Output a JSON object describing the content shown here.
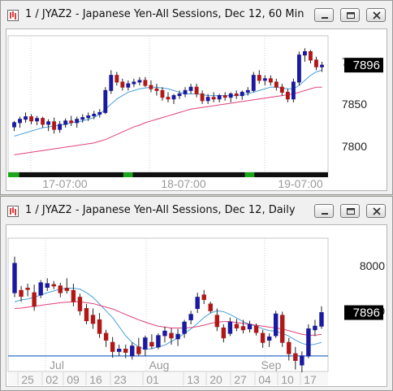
{
  "windows": [
    {
      "title": "1 / JYAZ2 - Japanese Yen-All Sessions, Dec 12, 60 Min",
      "price_labels": [
        "7900",
        "7850",
        "7800"
      ],
      "current_price": "7896",
      "x_labels": [
        "17-07:00",
        "18-07:00",
        "19-07:00"
      ]
    },
    {
      "title": "1 / JYAZ2 - Japanese Yen-All Sessions, Dec 12, Daily",
      "price_labels": [
        "8000",
        "7900"
      ],
      "current_price": "7896",
      "month_labels": [
        "Jul",
        "Aug",
        "Sep"
      ],
      "day_labels": [
        "25",
        "02",
        "09",
        "16",
        "23",
        "01",
        "13",
        "20",
        "27",
        "04",
        "10",
        "17"
      ]
    }
  ],
  "icons": {
    "window_icon": "chart-window-icon",
    "minimize": "minimize-icon",
    "restore": "restore-icon",
    "close": "close-icon"
  },
  "colors": {
    "candle": "#1a1aa0",
    "ma_fast": "#4aa0d8",
    "ma_slow": "#e0407a",
    "hline": "#2e6fc8",
    "session_on": "#1aa81a",
    "session_off": "#101010"
  },
  "chart_data": [
    {
      "type": "candlestick",
      "title": "1 / JYAZ2 - Japanese Yen-All Sessions, Dec 12, 60 Min",
      "ylim": [
        7775,
        7925
      ],
      "ytick_labels": [
        "7900",
        "7850",
        "7800"
      ],
      "xtick_labels": [
        "17-07:00",
        "18-07:00",
        "19-07:00"
      ],
      "last": 7896,
      "ohlc": [
        [
          7823,
          7830,
          7818,
          7828
        ],
        [
          7828,
          7835,
          7822,
          7832
        ],
        [
          7832,
          7840,
          7828,
          7835
        ],
        [
          7835,
          7838,
          7826,
          7830
        ],
        [
          7830,
          7836,
          7825,
          7833
        ],
        [
          7833,
          7835,
          7822,
          7826
        ],
        [
          7826,
          7832,
          7818,
          7829
        ],
        [
          7829,
          7834,
          7815,
          7820
        ],
        [
          7820,
          7830,
          7816,
          7826
        ],
        [
          7826,
          7833,
          7822,
          7830
        ],
        [
          7830,
          7836,
          7824,
          7828
        ],
        [
          7828,
          7835,
          7822,
          7832
        ],
        [
          7832,
          7838,
          7828,
          7834
        ],
        [
          7834,
          7840,
          7830,
          7836
        ],
        [
          7836,
          7842,
          7832,
          7838
        ],
        [
          7838,
          7844,
          7834,
          7840
        ],
        [
          7840,
          7870,
          7838,
          7866
        ],
        [
          7866,
          7890,
          7862,
          7884
        ],
        [
          7884,
          7888,
          7872,
          7876
        ],
        [
          7876,
          7880,
          7866,
          7870
        ],
        [
          7870,
          7878,
          7866,
          7874
        ],
        [
          7874,
          7880,
          7870,
          7876
        ],
        [
          7876,
          7882,
          7872,
          7878
        ],
        [
          7878,
          7882,
          7870,
          7872
        ],
        [
          7872,
          7878,
          7864,
          7868
        ],
        [
          7868,
          7874,
          7860,
          7866
        ],
        [
          7866,
          7870,
          7854,
          7858
        ],
        [
          7858,
          7864,
          7852,
          7856
        ],
        [
          7856,
          7862,
          7850,
          7860
        ],
        [
          7860,
          7866,
          7856,
          7862
        ],
        [
          7862,
          7870,
          7858,
          7866
        ],
        [
          7866,
          7874,
          7862,
          7870
        ],
        [
          7870,
          7874,
          7858,
          7862
        ],
        [
          7862,
          7866,
          7850,
          7854
        ],
        [
          7854,
          7862,
          7850,
          7858
        ],
        [
          7858,
          7864,
          7852,
          7856
        ],
        [
          7856,
          7862,
          7852,
          7860
        ],
        [
          7860,
          7864,
          7854,
          7858
        ],
        [
          7858,
          7864,
          7852,
          7862
        ],
        [
          7862,
          7866,
          7856,
          7860
        ],
        [
          7860,
          7866,
          7855,
          7864
        ],
        [
          7864,
          7870,
          7860,
          7866
        ],
        [
          7866,
          7888,
          7864,
          7884
        ],
        [
          7884,
          7890,
          7874,
          7878
        ],
        [
          7878,
          7884,
          7872,
          7880
        ],
        [
          7880,
          7884,
          7872,
          7876
        ],
        [
          7876,
          7880,
          7866,
          7870
        ],
        [
          7870,
          7874,
          7860,
          7864
        ],
        [
          7864,
          7868,
          7852,
          7856
        ],
        [
          7856,
          7880,
          7852,
          7876
        ],
        [
          7876,
          7912,
          7872,
          7908
        ],
        [
          7908,
          7916,
          7900,
          7912
        ],
        [
          7912,
          7914,
          7898,
          7902
        ],
        [
          7902,
          7906,
          7890,
          7894
        ],
        [
          7894,
          7900,
          7888,
          7896
        ]
      ],
      "series": [
        {
          "values": [
            7812,
            7814,
            7816,
            7818,
            7820,
            7822,
            7823,
            7824,
            7825,
            7826,
            7828,
            7829,
            7830,
            7832,
            7834,
            7838,
            7844,
            7850,
            7856,
            7860,
            7864,
            7866,
            7868,
            7869,
            7870,
            7870,
            7869,
            7868,
            7866,
            7864,
            7862,
            7862,
            7862,
            7861,
            7860,
            7860,
            7860,
            7860,
            7860,
            7860,
            7861,
            7862,
            7864,
            7866,
            7868,
            7870,
            7870,
            7869,
            7868,
            7868,
            7872,
            7878,
            7884,
            7888,
            7890
          ]
        },
        {
          "values": [
            7790,
            7791,
            7792,
            7793,
            7794,
            7795,
            7796,
            7797,
            7798,
            7799,
            7800,
            7801,
            7802,
            7803,
            7804,
            7806,
            7808,
            7811,
            7814,
            7817,
            7820,
            7823,
            7825,
            7828,
            7830,
            7832,
            7834,
            7836,
            7838,
            7840,
            7842,
            7844,
            7845,
            7846,
            7847,
            7848,
            7849,
            7850,
            7851,
            7852,
            7853,
            7854,
            7855,
            7856,
            7857,
            7858,
            7859,
            7860,
            7861,
            7862,
            7864,
            7866,
            7868,
            7870,
            7870
          ]
        }
      ],
      "sessions": [
        {
          "x0": 0.0,
          "x1": 0.035,
          "state": "on"
        },
        {
          "x0": 0.035,
          "x1": 0.14,
          "state": "off"
        },
        {
          "x0": 0.14,
          "x1": 0.36,
          "state": "off"
        },
        {
          "x0": 0.36,
          "x1": 0.39,
          "state": "on"
        },
        {
          "x0": 0.39,
          "x1": 0.74,
          "state": "off"
        },
        {
          "x0": 0.74,
          "x1": 0.77,
          "state": "on"
        },
        {
          "x0": 0.77,
          "x1": 1.0,
          "state": "off"
        }
      ]
    },
    {
      "type": "candlestick",
      "title": "1 / JYAZ2 - Japanese Yen-All Sessions, Dec 12, Daily",
      "ylim": [
        7780,
        8050
      ],
      "ytick_labels": [
        "8000",
        "7900"
      ],
      "xtick_labels": [
        "25",
        "02",
        "09",
        "16",
        "23",
        "01",
        "13",
        "20",
        "27",
        "04",
        "10",
        "17"
      ],
      "month_labels": [
        "Jul",
        "Aug",
        "Sep"
      ],
      "hline": 7800,
      "last": 7896,
      "ohlc": [
        [
          7940,
          8020,
          7930,
          8005
        ],
        [
          7945,
          7955,
          7920,
          7932
        ],
        [
          7950,
          7960,
          7932,
          7948
        ],
        [
          7940,
          7958,
          7900,
          7910
        ],
        [
          7935,
          7968,
          7928,
          7962
        ],
        [
          7952,
          7972,
          7944,
          7960
        ],
        [
          7958,
          7966,
          7948,
          7955
        ],
        [
          7955,
          7962,
          7930,
          7940
        ],
        [
          7950,
          7972,
          7938,
          7945
        ],
        [
          7945,
          7960,
          7910,
          7920
        ],
        [
          7930,
          7938,
          7890,
          7900
        ],
        [
          7905,
          7915,
          7870,
          7878
        ],
        [
          7890,
          7905,
          7860,
          7872
        ],
        [
          7880,
          7895,
          7840,
          7850
        ],
        [
          7850,
          7858,
          7820,
          7835
        ],
        [
          7830,
          7842,
          7796,
          7810
        ],
        [
          7810,
          7825,
          7800,
          7815
        ],
        [
          7815,
          7825,
          7795,
          7808
        ],
        [
          7800,
          7830,
          7792,
          7822
        ],
        [
          7820,
          7840,
          7800,
          7805
        ],
        [
          7815,
          7845,
          7800,
          7840
        ],
        [
          7830,
          7848,
          7815,
          7822
        ],
        [
          7820,
          7850,
          7815,
          7845
        ],
        [
          7845,
          7865,
          7830,
          7855
        ],
        [
          7850,
          7862,
          7825,
          7840
        ],
        [
          7838,
          7860,
          7822,
          7848
        ],
        [
          7850,
          7880,
          7840,
          7875
        ],
        [
          7880,
          7900,
          7870,
          7892
        ],
        [
          7905,
          7940,
          7895,
          7930
        ],
        [
          7935,
          7946,
          7915,
          7925
        ],
        [
          7915,
          7920,
          7895,
          7900
        ],
        [
          7890,
          7905,
          7855,
          7865
        ],
        [
          7862,
          7870,
          7830,
          7840
        ],
        [
          7850,
          7885,
          7844,
          7875
        ],
        [
          7870,
          7882,
          7855,
          7862
        ],
        [
          7865,
          7880,
          7850,
          7858
        ],
        [
          7860,
          7878,
          7852,
          7870
        ],
        [
          7866,
          7872,
          7845,
          7852
        ],
        [
          7850,
          7858,
          7818,
          7830
        ],
        [
          7835,
          7850,
          7820,
          7842
        ],
        [
          7845,
          7900,
          7840,
          7893
        ],
        [
          7890,
          7898,
          7820,
          7830
        ],
        [
          7830,
          7840,
          7790,
          7805
        ],
        [
          7805,
          7820,
          7770,
          7790
        ],
        [
          7780,
          7810,
          7740,
          7800
        ],
        [
          7800,
          7870,
          7795,
          7860
        ],
        [
          7858,
          7880,
          7844,
          7866
        ],
        [
          7866,
          7910,
          7860,
          7896
        ]
      ],
      "series": [
        {
          "values": [
            7920,
            7924,
            7926,
            7930,
            7935,
            7940,
            7944,
            7948,
            7950,
            7950,
            7948,
            7940,
            7930,
            7915,
            7900,
            7885,
            7865,
            7845,
            7830,
            7820,
            7815,
            7816,
            7820,
            7824,
            7832,
            7840,
            7850,
            7860,
            7872,
            7885,
            7895,
            7900,
            7898,
            7892,
            7884,
            7876,
            7870,
            7866,
            7860,
            7856,
            7855,
            7850,
            7844,
            7835,
            7828,
            7824,
            7826,
            7830
          ]
        },
        {
          "values": [
            7905,
            7906,
            7908,
            7910,
            7912,
            7914,
            7916,
            7918,
            7919,
            7920,
            7920,
            7918,
            7916,
            7912,
            7908,
            7904,
            7898,
            7892,
            7886,
            7880,
            7875,
            7870,
            7866,
            7864,
            7862,
            7862,
            7862,
            7863,
            7865,
            7868,
            7872,
            7875,
            7876,
            7876,
            7874,
            7872,
            7870,
            7868,
            7866,
            7864,
            7862,
            7860,
            7856,
            7852,
            7848,
            7846,
            7846,
            7848
          ]
        }
      ]
    }
  ]
}
